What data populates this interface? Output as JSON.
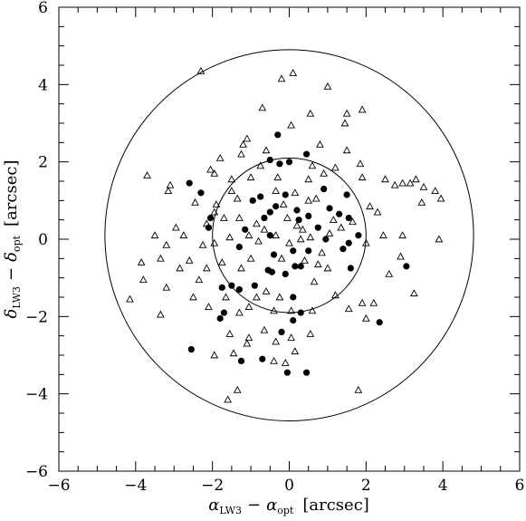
{
  "chart_data": {
    "type": "scatter",
    "xlabel": {
      "greek": "α",
      "sub1": "LW3",
      "minus": "−",
      "greek2": "α",
      "sub2": "opt",
      "unit": "[arcsec]"
    },
    "ylabel": {
      "greek": "δ",
      "sub1": "LW3",
      "minus": "−",
      "greek2": "δ",
      "sub2": "opt",
      "unit": "[arcsec]"
    },
    "xlim": [
      -6,
      6
    ],
    "ylim": [
      -6,
      6
    ],
    "x_ticks": [
      -6,
      -4,
      -2,
      0,
      2,
      4,
      6
    ],
    "y_ticks": [
      -6,
      -4,
      -2,
      0,
      2,
      4,
      6
    ],
    "x_tick_labels": [
      "−6",
      "−4",
      "−2",
      "0",
      "2",
      "4",
      "6"
    ],
    "y_tick_labels": [
      "−6",
      "−4",
      "−2",
      "0",
      "2",
      "4",
      "6"
    ],
    "grid": false,
    "circles": [
      {
        "center": [
          0,
          0.1
        ],
        "radius": 2.0
      },
      {
        "center": [
          0,
          0.1
        ],
        "radius": 4.8
      }
    ],
    "series": [
      {
        "marker": "filled-circle",
        "points": [
          [
            -0.3,
            2.7
          ],
          [
            -0.5,
            2.05
          ],
          [
            -0.25,
            1.95
          ],
          [
            0.0,
            2.0
          ],
          [
            0.45,
            2.2
          ],
          [
            -2.6,
            1.45
          ],
          [
            -2.3,
            1.2
          ],
          [
            -2.05,
            0.55
          ],
          [
            -1.15,
            0.25
          ],
          [
            -1.3,
            -0.2
          ],
          [
            -0.75,
            1.1
          ],
          [
            -0.1,
            1.15
          ],
          [
            0.9,
            1.3
          ],
          [
            1.5,
            1.15
          ],
          [
            -0.65,
            0.55
          ],
          [
            -0.5,
            0.7
          ],
          [
            -0.35,
            0.85
          ],
          [
            0.2,
            0.75
          ],
          [
            0.5,
            0.6
          ],
          [
            0.75,
            0.3
          ],
          [
            1.05,
            0.8
          ],
          [
            1.3,
            0.65
          ],
          [
            1.55,
            0.55
          ],
          [
            1.8,
            0.1
          ],
          [
            -0.5,
            0.1
          ],
          [
            0.25,
            0.5
          ],
          [
            -0.4,
            -0.4
          ],
          [
            0.1,
            -0.3
          ],
          [
            0.5,
            -0.3
          ],
          [
            0.95,
            0.0
          ],
          [
            1.4,
            -0.25
          ],
          [
            1.55,
            -0.1
          ],
          [
            1.6,
            -0.75
          ],
          [
            3.05,
            -0.7
          ],
          [
            -0.55,
            -0.8
          ],
          [
            -0.45,
            -0.85
          ],
          [
            0.15,
            -0.7
          ],
          [
            -0.1,
            -0.9
          ],
          [
            0.3,
            -0.7
          ],
          [
            0.1,
            -1.5
          ],
          [
            -0.9,
            -1.2
          ],
          [
            -1.3,
            -1.3
          ],
          [
            -1.5,
            -1.2
          ],
          [
            -1.75,
            -1.25
          ],
          [
            -1.8,
            -2.05
          ],
          [
            -1.7,
            -1.9
          ],
          [
            2.35,
            -2.15
          ],
          [
            0.3,
            -1.9
          ],
          [
            0.1,
            -2.1
          ],
          [
            -2.55,
            -2.85
          ],
          [
            -1.25,
            -3.15
          ],
          [
            -0.7,
            -3.1
          ],
          [
            -0.2,
            -2.4
          ],
          [
            -0.05,
            -3.45
          ],
          [
            0.45,
            -3.45
          ],
          [
            -0.95,
            1.0
          ],
          [
            -2.1,
            0.3
          ]
        ]
      },
      {
        "marker": "open-triangle",
        "points": [
          [
            -2.3,
            4.35
          ],
          [
            -0.2,
            4.15
          ],
          [
            0.1,
            4.3
          ],
          [
            1.0,
            3.95
          ],
          [
            0.55,
            3.25
          ],
          [
            -0.7,
            3.4
          ],
          [
            1.5,
            3.25
          ],
          [
            1.9,
            3.35
          ],
          [
            1.45,
            3.0
          ],
          [
            0.05,
            2.95
          ],
          [
            -1.1,
            2.6
          ],
          [
            -1.2,
            2.45
          ],
          [
            -0.6,
            2.3
          ],
          [
            0.8,
            2.45
          ],
          [
            1.5,
            2.3
          ],
          [
            -1.8,
            2.1
          ],
          [
            -1.25,
            2.2
          ],
          [
            -0.75,
            1.9
          ],
          [
            0.6,
            1.9
          ],
          [
            1.2,
            1.85
          ],
          [
            1.85,
            1.95
          ],
          [
            -3.7,
            1.65
          ],
          [
            -3.1,
            1.4
          ],
          [
            -3.15,
            1.25
          ],
          [
            -2.05,
            1.8
          ],
          [
            -1.95,
            1.7
          ],
          [
            -1.5,
            1.55
          ],
          [
            -1.0,
            1.6
          ],
          [
            -0.3,
            1.6
          ],
          [
            0.5,
            1.55
          ],
          [
            0.9,
            1.7
          ],
          [
            1.9,
            1.6
          ],
          [
            2.5,
            1.55
          ],
          [
            2.75,
            1.4
          ],
          [
            2.95,
            1.45
          ],
          [
            3.15,
            1.45
          ],
          [
            3.3,
            1.55
          ],
          [
            3.5,
            1.35
          ],
          [
            3.8,
            1.25
          ],
          [
            3.45,
            0.95
          ],
          [
            3.95,
            1.05
          ],
          [
            -2.45,
            0.95
          ],
          [
            -1.9,
            0.9
          ],
          [
            -1.5,
            1.25
          ],
          [
            -1.35,
            1.05
          ],
          [
            -0.35,
            1.25
          ],
          [
            0.15,
            1.2
          ],
          [
            0.7,
            1.05
          ],
          [
            2.1,
            0.85
          ],
          [
            2.3,
            0.7
          ],
          [
            -2.15,
            0.4
          ],
          [
            -1.95,
            0.7
          ],
          [
            -1.7,
            0.55
          ],
          [
            -1.3,
            0.55
          ],
          [
            -0.85,
            0.4
          ],
          [
            -0.05,
            0.55
          ],
          [
            0.35,
            0.25
          ],
          [
            1.15,
            0.5
          ],
          [
            1.35,
            0.3
          ],
          [
            1.65,
            0.45
          ],
          [
            -3.5,
            0.1
          ],
          [
            -3.2,
            -0.15
          ],
          [
            -2.95,
            0.3
          ],
          [
            -2.75,
            0.1
          ],
          [
            -2.25,
            -0.15
          ],
          [
            -1.95,
            -0.1
          ],
          [
            -1.55,
            0.05
          ],
          [
            -0.8,
            -0.05
          ],
          [
            -0.35,
            0.1
          ],
          [
            0.0,
            -0.1
          ],
          [
            0.55,
            0.05
          ],
          [
            1.05,
            0.15
          ],
          [
            2.0,
            -0.1
          ],
          [
            2.45,
            0.1
          ],
          [
            2.95,
            0.1
          ],
          [
            3.9,
            0.0
          ],
          [
            -3.85,
            -0.6
          ],
          [
            -3.35,
            -0.5
          ],
          [
            -2.6,
            -0.55
          ],
          [
            -2.15,
            -0.75
          ],
          [
            -1.75,
            -0.6
          ],
          [
            -1.0,
            -0.5
          ],
          [
            -0.2,
            -0.5
          ],
          [
            0.4,
            -0.55
          ],
          [
            0.85,
            -0.35
          ],
          [
            2.9,
            -0.45
          ],
          [
            2.6,
            -0.9
          ],
          [
            3.25,
            -1.4
          ],
          [
            -4.15,
            -1.55
          ],
          [
            -3.8,
            -1.05
          ],
          [
            -3.2,
            -1.25
          ],
          [
            -2.85,
            -0.75
          ],
          [
            -2.35,
            -1.05
          ],
          [
            -1.65,
            -1.5
          ],
          [
            -1.25,
            -0.75
          ],
          [
            -0.85,
            -1.5
          ],
          [
            -0.6,
            -1.35
          ],
          [
            -0.25,
            -1.5
          ],
          [
            0.65,
            -1.1
          ],
          [
            1.2,
            -1.45
          ],
          [
            1.9,
            -1.65
          ],
          [
            2.2,
            -1.65
          ],
          [
            -3.35,
            -1.95
          ],
          [
            -2.5,
            -1.5
          ],
          [
            -2.1,
            -1.75
          ],
          [
            -1.3,
            -1.9
          ],
          [
            -1.05,
            -1.75
          ],
          [
            -0.4,
            -1.85
          ],
          [
            0.05,
            -1.85
          ],
          [
            0.6,
            -1.85
          ],
          [
            1.55,
            -1.8
          ],
          [
            2.0,
            -2.05
          ],
          [
            -1.55,
            -2.45
          ],
          [
            -1.1,
            -2.7
          ],
          [
            -0.65,
            -2.35
          ],
          [
            -0.35,
            -2.65
          ],
          [
            0.05,
            -2.55
          ],
          [
            0.55,
            -2.45
          ],
          [
            -1.95,
            -3.0
          ],
          [
            -1.45,
            -2.95
          ],
          [
            -1.05,
            -2.55
          ],
          [
            -0.4,
            -3.15
          ],
          [
            0.15,
            -2.9
          ],
          [
            -1.35,
            -3.9
          ],
          [
            -1.6,
            -4.15
          ],
          [
            -0.1,
            -3.2
          ],
          [
            1.8,
            -3.9
          ],
          [
            0.2,
            0.35
          ],
          [
            0.3,
            0.0
          ],
          [
            -0.65,
            0.25
          ],
          [
            0.75,
            -0.65
          ],
          [
            -1.05,
            0.1
          ],
          [
            0.5,
            1.0
          ],
          [
            -0.15,
            0.9
          ],
          [
            1.0,
            -0.75
          ]
        ]
      }
    ]
  }
}
